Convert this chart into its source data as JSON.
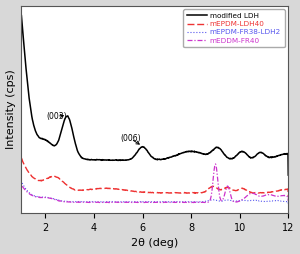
{
  "xlabel": "2θ (deg)",
  "ylabel": "Intensity (cps)",
  "xlim": [
    1,
    12
  ],
  "legend_labels": [
    "modified LDH",
    "mEPDM-LDH40",
    "mEPDM-FR38-LDH2",
    "mEDDM-FR40"
  ],
  "legend_colors": [
    "black",
    "#ee3333",
    "#5555ee",
    "#cc33cc"
  ],
  "background_color": "#d8d8d8",
  "plot_bg_color": "white",
  "figsize": [
    3.0,
    2.54
  ],
  "dpi": 100
}
